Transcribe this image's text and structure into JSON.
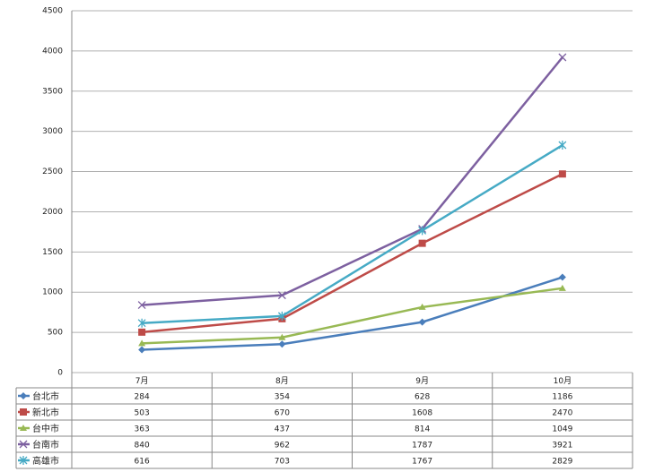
{
  "chart_data": {
    "type": "line",
    "categories": [
      "7月",
      "8月",
      "9月",
      "10月"
    ],
    "series": [
      {
        "name": "台北市",
        "color": "#4a7ebb",
        "marker": "diamond",
        "values": [
          284,
          354,
          628,
          1186
        ]
      },
      {
        "name": "新北市",
        "color": "#be4b48",
        "marker": "square",
        "values": [
          503,
          670,
          1608,
          2470
        ]
      },
      {
        "name": "台中市",
        "color": "#98b954",
        "marker": "triangle",
        "values": [
          363,
          437,
          814,
          1049
        ]
      },
      {
        "name": "台南市",
        "color": "#7d60a0",
        "marker": "x",
        "values": [
          840,
          962,
          1787,
          3921
        ]
      },
      {
        "name": "高雄市",
        "color": "#46aac5",
        "marker": "star",
        "values": [
          616,
          703,
          1767,
          2829
        ]
      }
    ],
    "ylim": [
      0,
      4500
    ],
    "yticks": [
      0,
      500,
      1000,
      1500,
      2000,
      2500,
      3000,
      3500,
      4000,
      4500
    ],
    "grid": true,
    "data_table": true
  }
}
